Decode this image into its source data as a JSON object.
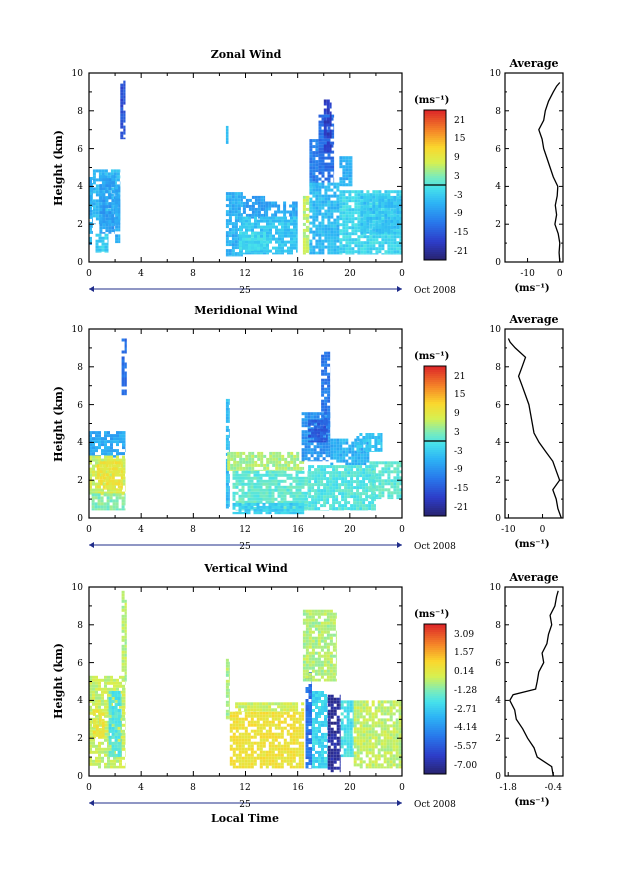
{
  "figure": {
    "xlabel": "Local Time",
    "date_label": "Oct 2008",
    "day_label": "25"
  },
  "chart_data": [
    {
      "type": "heatmap",
      "title": "Zonal Wind",
      "ylabel": "Height (km)",
      "units": "(ms⁻¹)",
      "x_ticks": [
        "0",
        "4",
        "8",
        "12",
        "16",
        "20",
        "0"
      ],
      "ylim": [
        0,
        10
      ],
      "y_ticks": [
        "0",
        "2",
        "4",
        "6",
        "8",
        "10"
      ],
      "colorbar_ticks": [
        "21",
        "15",
        "9",
        "3",
        "-3",
        "-9",
        "-15",
        "-21"
      ],
      "colorbar_range": [
        -24,
        24
      ],
      "zero_line": 0,
      "blocks": [
        {
          "x": [
            0,
            0.3
          ],
          "y": [
            0.9,
            4.5
          ],
          "v": -6
        },
        {
          "x": [
            0.3,
            2.4
          ],
          "y": [
            2.0,
            4.9
          ],
          "v": -5
        },
        {
          "x": [
            0.8,
            2.0
          ],
          "y": [
            1.5,
            4.6
          ],
          "v": -8
        },
        {
          "x": [
            0.5,
            1.5
          ],
          "y": [
            0.5,
            1.5
          ],
          "v": -3
        },
        {
          "x": [
            2.0,
            2.4
          ],
          "y": [
            1.0,
            4.0
          ],
          "v": -7
        },
        {
          "x": [
            2.4,
            2.8
          ],
          "y": [
            6.5,
            9.6
          ],
          "v": -16
        },
        {
          "x": [
            10.5,
            10.7
          ],
          "y": [
            6.2,
            7.2
          ],
          "v": -5
        },
        {
          "x": [
            10.5,
            11.8
          ],
          "y": [
            0.3,
            3.7
          ],
          "v": -6
        },
        {
          "x": [
            11.8,
            13.5
          ],
          "y": [
            2.3,
            3.5
          ],
          "v": -8
        },
        {
          "x": [
            11.5,
            16.0
          ],
          "y": [
            0.4,
            2.4
          ],
          "v": -4
        },
        {
          "x": [
            13.5,
            16.0
          ],
          "y": [
            2.4,
            3.2
          ],
          "v": -7
        },
        {
          "x": [
            11.5,
            13.8
          ],
          "y": [
            0.6,
            1.6
          ],
          "v": -2
        },
        {
          "x": [
            16.4,
            16.9
          ],
          "y": [
            0.4,
            3.5
          ],
          "v": 6
        },
        {
          "x": [
            16.9,
            17.6
          ],
          "y": [
            4.0,
            6.5
          ],
          "v": -11
        },
        {
          "x": [
            17.6,
            18.8
          ],
          "y": [
            4.2,
            7.8
          ],
          "v": -13
        },
        {
          "x": [
            18.0,
            18.6
          ],
          "y": [
            5.8,
            8.6
          ],
          "v": -18
        },
        {
          "x": [
            16.9,
            19.2
          ],
          "y": [
            0.4,
            4.2
          ],
          "v": -5
        },
        {
          "x": [
            19.2,
            24.0
          ],
          "y": [
            0.4,
            3.8
          ],
          "v": -2
        },
        {
          "x": [
            20.8,
            24.0
          ],
          "y": [
            1.5,
            3.5
          ],
          "v": -4
        },
        {
          "x": [
            19.2,
            20.2
          ],
          "y": [
            4.0,
            5.6
          ],
          "v": -6
        }
      ],
      "average_profile": {
        "title": "Average",
        "xlabel": "(ms⁻¹)",
        "x_ticks": [
          "-10",
          "0"
        ],
        "xlim": [
          -17,
          1
        ],
        "height": [
          0.0,
          0.5,
          1.0,
          1.5,
          2.0,
          2.5,
          3.0,
          3.5,
          4.0,
          4.5,
          5.0,
          5.5,
          6.0,
          6.5,
          7.0,
          7.5,
          8.0,
          8.5,
          9.0,
          9.3,
          9.5
        ],
        "value": [
          0.0,
          -0.2,
          0.0,
          -0.5,
          -1.5,
          -1.0,
          -1.4,
          -0.8,
          -0.6,
          -2.0,
          -3.0,
          -4.0,
          -5.0,
          -5.5,
          -6.5,
          -5.0,
          -4.5,
          -3.5,
          -2.0,
          -1.0,
          0.0
        ]
      }
    },
    {
      "type": "heatmap",
      "title": "Meridional Wind",
      "ylabel": "Height (km)",
      "units": "(ms⁻¹)",
      "x_ticks": [
        "0",
        "4",
        "8",
        "12",
        "16",
        "20",
        "0"
      ],
      "ylim": [
        0,
        10
      ],
      "y_ticks": [
        "0",
        "2",
        "4",
        "6",
        "8",
        "10"
      ],
      "colorbar_ticks": [
        "21",
        "15",
        "9",
        "3",
        "-3",
        "-9",
        "-15",
        "-21"
      ],
      "colorbar_range": [
        -24,
        24
      ],
      "zero_line": 0,
      "blocks": [
        {
          "x": [
            0,
            2.8
          ],
          "y": [
            3.2,
            4.6
          ],
          "v": -7
        },
        {
          "x": [
            0,
            2.8
          ],
          "y": [
            1.2,
            3.3
          ],
          "v": 7
        },
        {
          "x": [
            0.6,
            2.6
          ],
          "y": [
            1.5,
            3.0
          ],
          "v": 10
        },
        {
          "x": [
            0.2,
            2.8
          ],
          "y": [
            0.4,
            1.3
          ],
          "v": 3
        },
        {
          "x": [
            2.5,
            2.9
          ],
          "y": [
            6.5,
            9.5
          ],
          "v": -13
        },
        {
          "x": [
            10.5,
            10.8
          ],
          "y": [
            0.5,
            6.3
          ],
          "v": -5
        },
        {
          "x": [
            10.6,
            16.5
          ],
          "y": [
            2.5,
            3.5
          ],
          "v": 5
        },
        {
          "x": [
            11.0,
            16.8
          ],
          "y": [
            0.4,
            2.5
          ],
          "v": 1
        },
        {
          "x": [
            11.0,
            16.5
          ],
          "y": [
            0.2,
            0.8
          ],
          "v": -3
        },
        {
          "x": [
            16.3,
            18.5
          ],
          "y": [
            3.0,
            5.6
          ],
          "v": -9
        },
        {
          "x": [
            17.8,
            18.5
          ],
          "y": [
            4.5,
            8.8
          ],
          "v": -12
        },
        {
          "x": [
            16.8,
            18.3
          ],
          "y": [
            4.0,
            5.2
          ],
          "v": -15
        },
        {
          "x": [
            18.5,
            21.5
          ],
          "y": [
            2.8,
            4.2
          ],
          "v": -6
        },
        {
          "x": [
            16.8,
            22.0
          ],
          "y": [
            0.4,
            2.8
          ],
          "v": 0
        },
        {
          "x": [
            21.5,
            24.0
          ],
          "y": [
            1.0,
            3.0
          ],
          "v": 1
        },
        {
          "x": [
            20.5,
            22.5
          ],
          "y": [
            3.5,
            4.5
          ],
          "v": -4
        }
      ],
      "average_profile": {
        "title": "Average",
        "xlabel": "(ms⁻¹)",
        "x_ticks": [
          "-10",
          "0"
        ],
        "xlim": [
          -11,
          6
        ],
        "height": [
          0.0,
          0.5,
          1.0,
          1.5,
          2.0,
          2.5,
          3.0,
          3.5,
          4.0,
          4.5,
          5.0,
          5.5,
          6.0,
          6.5,
          7.0,
          7.5,
          8.0,
          8.5,
          9.0,
          9.3,
          9.5
        ],
        "value": [
          5.5,
          4.5,
          4.0,
          3.0,
          5.0,
          4.0,
          3.0,
          1.0,
          -1.0,
          -2.5,
          -3.0,
          -3.5,
          -4.0,
          -5.0,
          -6.0,
          -7.0,
          -6.0,
          -5.0,
          -8.0,
          -9.5,
          -10.0
        ]
      }
    },
    {
      "type": "heatmap",
      "title": "Vertical Wind",
      "ylabel": "Height (km)",
      "units": "(ms⁻¹)",
      "x_ticks": [
        "0",
        "4",
        "8",
        "12",
        "16",
        "20",
        "0"
      ],
      "ylim": [
        0,
        10
      ],
      "y_ticks": [
        "0",
        "2",
        "4",
        "6",
        "8",
        "10"
      ],
      "colorbar_ticks": [
        "3.09",
        "1.57",
        "0.14",
        "-1.28",
        "-2.71",
        "-4.14",
        "-5.57",
        "-7.00"
      ],
      "colorbar_range": [
        -7.7,
        3.8
      ],
      "zero_line": null,
      "blocks": [
        {
          "x": [
            0,
            2.8
          ],
          "y": [
            0.4,
            5.3
          ],
          "v": -0.4
        },
        {
          "x": [
            1.5,
            2.5
          ],
          "y": [
            1.0,
            4.5
          ],
          "v": -2.0
        },
        {
          "x": [
            2.5,
            2.9
          ],
          "y": [
            5.0,
            9.8
          ],
          "v": -0.6
        },
        {
          "x": [
            0.3,
            1.2
          ],
          "y": [
            2.0,
            3.5
          ],
          "v": 0.4
        },
        {
          "x": [
            10.5,
            10.8
          ],
          "y": [
            3.0,
            6.2
          ],
          "v": -0.8
        },
        {
          "x": [
            10.8,
            16.5
          ],
          "y": [
            0.4,
            3.4
          ],
          "v": 0.5
        },
        {
          "x": [
            11.2,
            16.5
          ],
          "y": [
            3.4,
            3.9
          ],
          "v": -0.3
        },
        {
          "x": [
            16.6,
            17.1
          ],
          "y": [
            0.4,
            5.5
          ],
          "v": -5.0
        },
        {
          "x": [
            17.1,
            18.3
          ],
          "y": [
            0.4,
            4.5
          ],
          "v": -2.5
        },
        {
          "x": [
            18.3,
            19.3
          ],
          "y": [
            0.2,
            4.3
          ],
          "v": -7.0
        },
        {
          "x": [
            16.4,
            19.0
          ],
          "y": [
            5.0,
            8.8
          ],
          "v": -0.7
        },
        {
          "x": [
            19.3,
            20.3
          ],
          "y": [
            1.0,
            4.0
          ],
          "v": -2.2
        },
        {
          "x": [
            20.3,
            24.0
          ],
          "y": [
            0.4,
            4.0
          ],
          "v": -0.5
        }
      ],
      "average_profile": {
        "title": "Average",
        "xlabel": "(ms⁻¹)",
        "x_ticks": [
          "-1.8",
          "-0.4"
        ],
        "xlim": [
          -1.9,
          -0.1
        ],
        "height": [
          0.0,
          0.5,
          1.0,
          1.5,
          2.0,
          2.5,
          3.0,
          3.5,
          4.0,
          4.3,
          4.6,
          5.0,
          5.5,
          6.0,
          6.5,
          7.0,
          7.5,
          8.0,
          8.5,
          9.0,
          9.5,
          9.8
        ],
        "value": [
          -0.4,
          -0.45,
          -0.9,
          -1.0,
          -1.2,
          -1.35,
          -1.55,
          -1.6,
          -1.75,
          -1.65,
          -0.95,
          -0.9,
          -0.85,
          -0.7,
          -0.75,
          -0.6,
          -0.55,
          -0.45,
          -0.5,
          -0.35,
          -0.3,
          -0.25
        ]
      }
    }
  ]
}
